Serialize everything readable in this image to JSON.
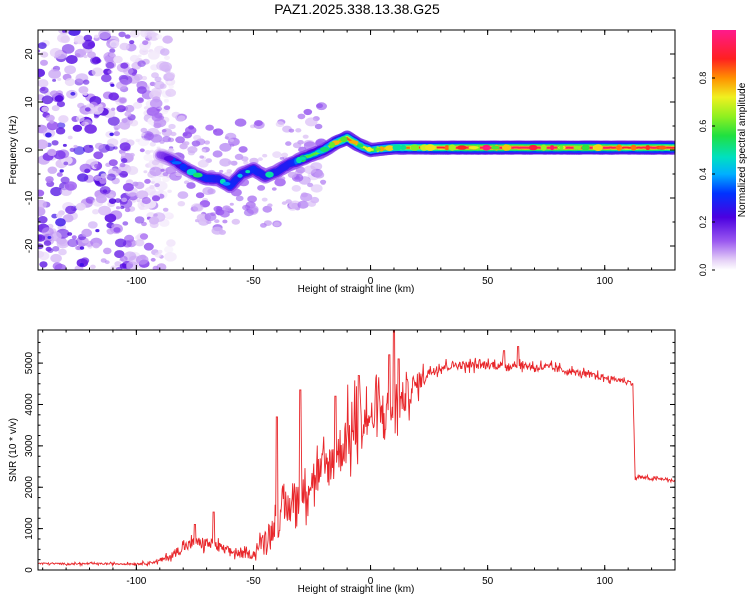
{
  "title": "PAZ1.2025.338.13.38.G25",
  "chart_data": [
    {
      "type": "heatmap",
      "xlabel": "Height of straight line (km)",
      "ylabel": "Frequency (Hz)",
      "xlim": [
        -142,
        130
      ],
      "ylim": [
        -25,
        25
      ],
      "xticks": [
        -100,
        -50,
        0,
        50,
        100
      ],
      "xtick_labels": [
        "-100",
        "-50",
        "0",
        "50",
        "100"
      ],
      "yticks": [
        -20,
        -10,
        0,
        10,
        20
      ],
      "ytick_labels": [
        "-20",
        "-10",
        "0",
        "10",
        "20"
      ],
      "colorbar": {
        "label": "Normalized spectral amplitude",
        "range": [
          0,
          1
        ],
        "ticks": [
          0.0,
          0.2,
          0.4,
          0.6,
          0.8
        ],
        "tick_labels": [
          "0.0",
          "0.2",
          "0.4",
          "0.6",
          "0.8"
        ]
      },
      "ridge": {
        "x": [
          -90,
          -85,
          -80,
          -75,
          -70,
          -65,
          -60,
          -55,
          -50,
          -45,
          -40,
          -35,
          -30,
          -25,
          -20,
          -15,
          -10,
          -5,
          0,
          10,
          20,
          30,
          40,
          50,
          60,
          70,
          80,
          90,
          100,
          110,
          120,
          130
        ],
        "frequency": [
          -1,
          -2,
          -3.5,
          -5,
          -6,
          -6,
          -7.5,
          -5,
          -4,
          -5.5,
          -4.5,
          -3,
          -2,
          -1,
          0,
          1.5,
          2.5,
          1,
          0,
          0.5,
          0.5,
          0.5,
          0.5,
          0.5,
          0.5,
          0.5,
          0.5,
          0.5,
          0.5,
          0.5,
          0.5,
          0.5
        ],
        "amplitude": [
          0.25,
          0.35,
          0.45,
          0.5,
          0.55,
          0.5,
          0.55,
          0.5,
          0.55,
          0.5,
          0.5,
          0.5,
          0.6,
          0.6,
          0.65,
          0.75,
          0.85,
          0.75,
          0.7,
          0.8,
          0.85,
          0.9,
          0.95,
          0.95,
          0.95,
          0.95,
          0.95,
          0.95,
          0.95,
          0.9,
          0.95,
          0.9
        ]
      },
      "noise_region_x": [
        -142,
        -85
      ]
    },
    {
      "type": "line",
      "xlabel": "Height of straight line (km)",
      "ylabel": "SNR (10 * v/v)",
      "xlim": [
        -142,
        130
      ],
      "ylim": [
        0,
        5800
      ],
      "xticks": [
        -100,
        -50,
        0,
        50,
        100
      ],
      "xtick_labels": [
        "-100",
        "-50",
        "0",
        "50",
        "100"
      ],
      "yticks": [
        0,
        1000,
        2000,
        3000,
        4000,
        5000
      ],
      "ytick_labels": [
        "0",
        "1000",
        "2000",
        "3000",
        "4000",
        "5000"
      ],
      "series": [
        {
          "name": "SNR",
          "color": "#e8262a",
          "x": [
            -142,
            -130,
            -120,
            -110,
            -100,
            -95,
            -90,
            -85,
            -80,
            -75,
            -70,
            -65,
            -60,
            -55,
            -50,
            -45,
            -40,
            -35,
            -30,
            -25,
            -20,
            -15,
            -10,
            -5,
            0,
            5,
            10,
            15,
            20,
            25,
            30,
            35,
            40,
            45,
            50,
            55,
            60,
            65,
            70,
            75,
            80,
            85,
            90,
            95,
            100,
            105,
            110,
            112,
            113,
            115,
            120,
            125,
            130
          ],
          "y": [
            160,
            150,
            150,
            150,
            150,
            170,
            220,
            350,
            550,
            650,
            650,
            550,
            450,
            380,
            380,
            800,
            1100,
            1500,
            1900,
            2200,
            2400,
            2700,
            3200,
            3500,
            3700,
            3800,
            3900,
            4200,
            4500,
            4800,
            4900,
            4950,
            4950,
            4950,
            4950,
            4950,
            4950,
            4950,
            4900,
            4900,
            4850,
            4800,
            4750,
            4700,
            4650,
            4600,
            4550,
            4500,
            2200,
            2250,
            2200,
            2200,
            2150
          ],
          "spread": [
            40,
            40,
            40,
            40,
            50,
            60,
            100,
            180,
            250,
            280,
            300,
            250,
            200,
            200,
            200,
            450,
            700,
            900,
            1000,
            1000,
            1000,
            1100,
            1300,
            1300,
            1200,
            1100,
            1000,
            800,
            500,
            300,
            220,
            200,
            200,
            200,
            200,
            200,
            200,
            200,
            200,
            200,
            180,
            160,
            160,
            150,
            150,
            120,
            100,
            100,
            80,
            80,
            70,
            70,
            70
          ],
          "peaks": [
            [
              -30,
              4350
            ],
            [
              -40,
              3700
            ],
            [
              -15,
              4200
            ],
            [
              -5,
              4700
            ],
            [
              0,
              3700
            ],
            [
              8,
              5200
            ],
            [
              10,
              5800
            ],
            [
              12,
              5100
            ],
            [
              63,
              5400
            ],
            [
              57,
              5300
            ],
            [
              -67,
              1400
            ],
            [
              -75,
              1100
            ]
          ]
        }
      ]
    }
  ]
}
